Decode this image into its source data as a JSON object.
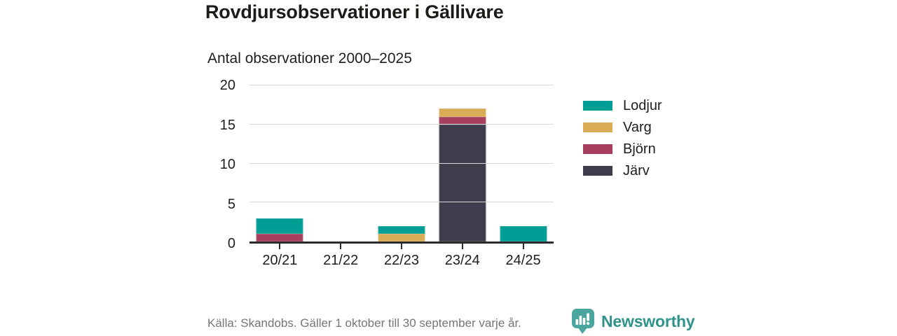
{
  "header": {
    "title": "Rovdjursobservationer i Gällivare",
    "subtitle": "Antal observationer 2000–2025"
  },
  "chart_data": {
    "type": "bar",
    "stacked": true,
    "title": "Rovdjursobservationer i Gällivare",
    "subtitle": "Antal observationer 2000–2025",
    "categories": [
      "20/21",
      "21/22",
      "22/23",
      "23/24",
      "24/25"
    ],
    "series": [
      {
        "name": "Järv",
        "color": "#3F3D4C",
        "values": [
          0,
          0,
          0,
          15,
          0
        ]
      },
      {
        "name": "Björn",
        "color": "#A6405E",
        "values": [
          1,
          0,
          0,
          1,
          0
        ]
      },
      {
        "name": "Varg",
        "color": "#D9AC55",
        "values": [
          0,
          0,
          1,
          1,
          0
        ]
      },
      {
        "name": "Lodjur",
        "color": "#009E94",
        "values": [
          2,
          0,
          1,
          0,
          2
        ]
      }
    ],
    "totals": [
      3,
      0,
      2,
      17,
      2
    ],
    "xlabel": "",
    "ylabel": "",
    "ylim": [
      0,
      20
    ],
    "yticks": [
      0,
      5,
      10,
      15,
      20
    ],
    "grid": "horizontal",
    "legend": [
      "Lodjur",
      "Varg",
      "Björn",
      "Järv"
    ],
    "legend_position": "right"
  },
  "footer": {
    "source": "Källa: Skandobs. Gäller 1 oktober till 30 september varje år.",
    "brand": "Newsworthy"
  },
  "colors": {
    "lodjur": "#009E94",
    "varg": "#D9AC55",
    "bjorn": "#A6405E",
    "jarv": "#3F3D4C",
    "axis": "#2B2B2B",
    "gridline": "#D9D9D9",
    "source_text": "#757575",
    "brand_teal": "#2F938C",
    "logo_teal": "#4BA6A0"
  }
}
